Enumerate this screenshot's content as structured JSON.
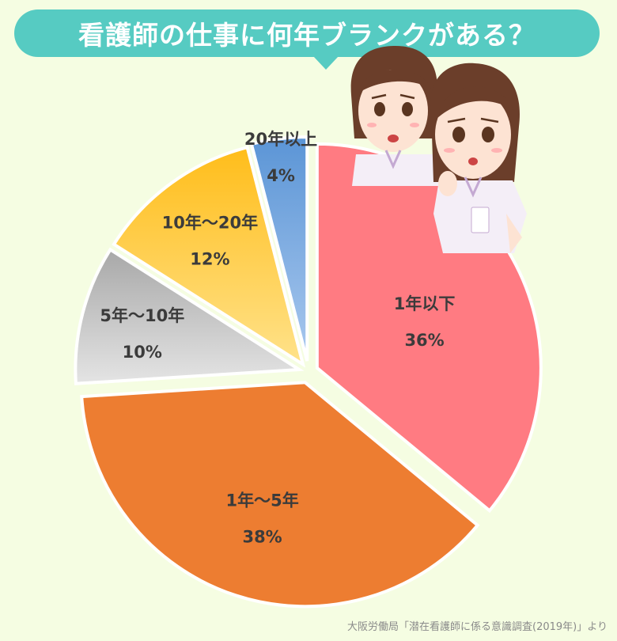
{
  "header": {
    "title": "看護師の仕事に何年ブランクがある？"
  },
  "chart_data": {
    "type": "pie",
    "categories": [
      "1年以下",
      "1年～5年",
      "5年～10年",
      "10年～20年",
      "20年以上"
    ],
    "values": [
      36,
      38,
      10,
      12,
      4
    ],
    "value_labels": [
      "36%",
      "38%",
      "10%",
      "12%",
      "4%"
    ],
    "colors": [
      "#ff7b82",
      "#ed7d31",
      "#b4b4b4",
      "#ffc83d",
      "#6a9fd8"
    ],
    "start": "12 o'clock, clockwise",
    "exploded": true
  },
  "footer": {
    "source": "大阪労働局「潜在看護師に係る意識調査(2019年)」より"
  }
}
